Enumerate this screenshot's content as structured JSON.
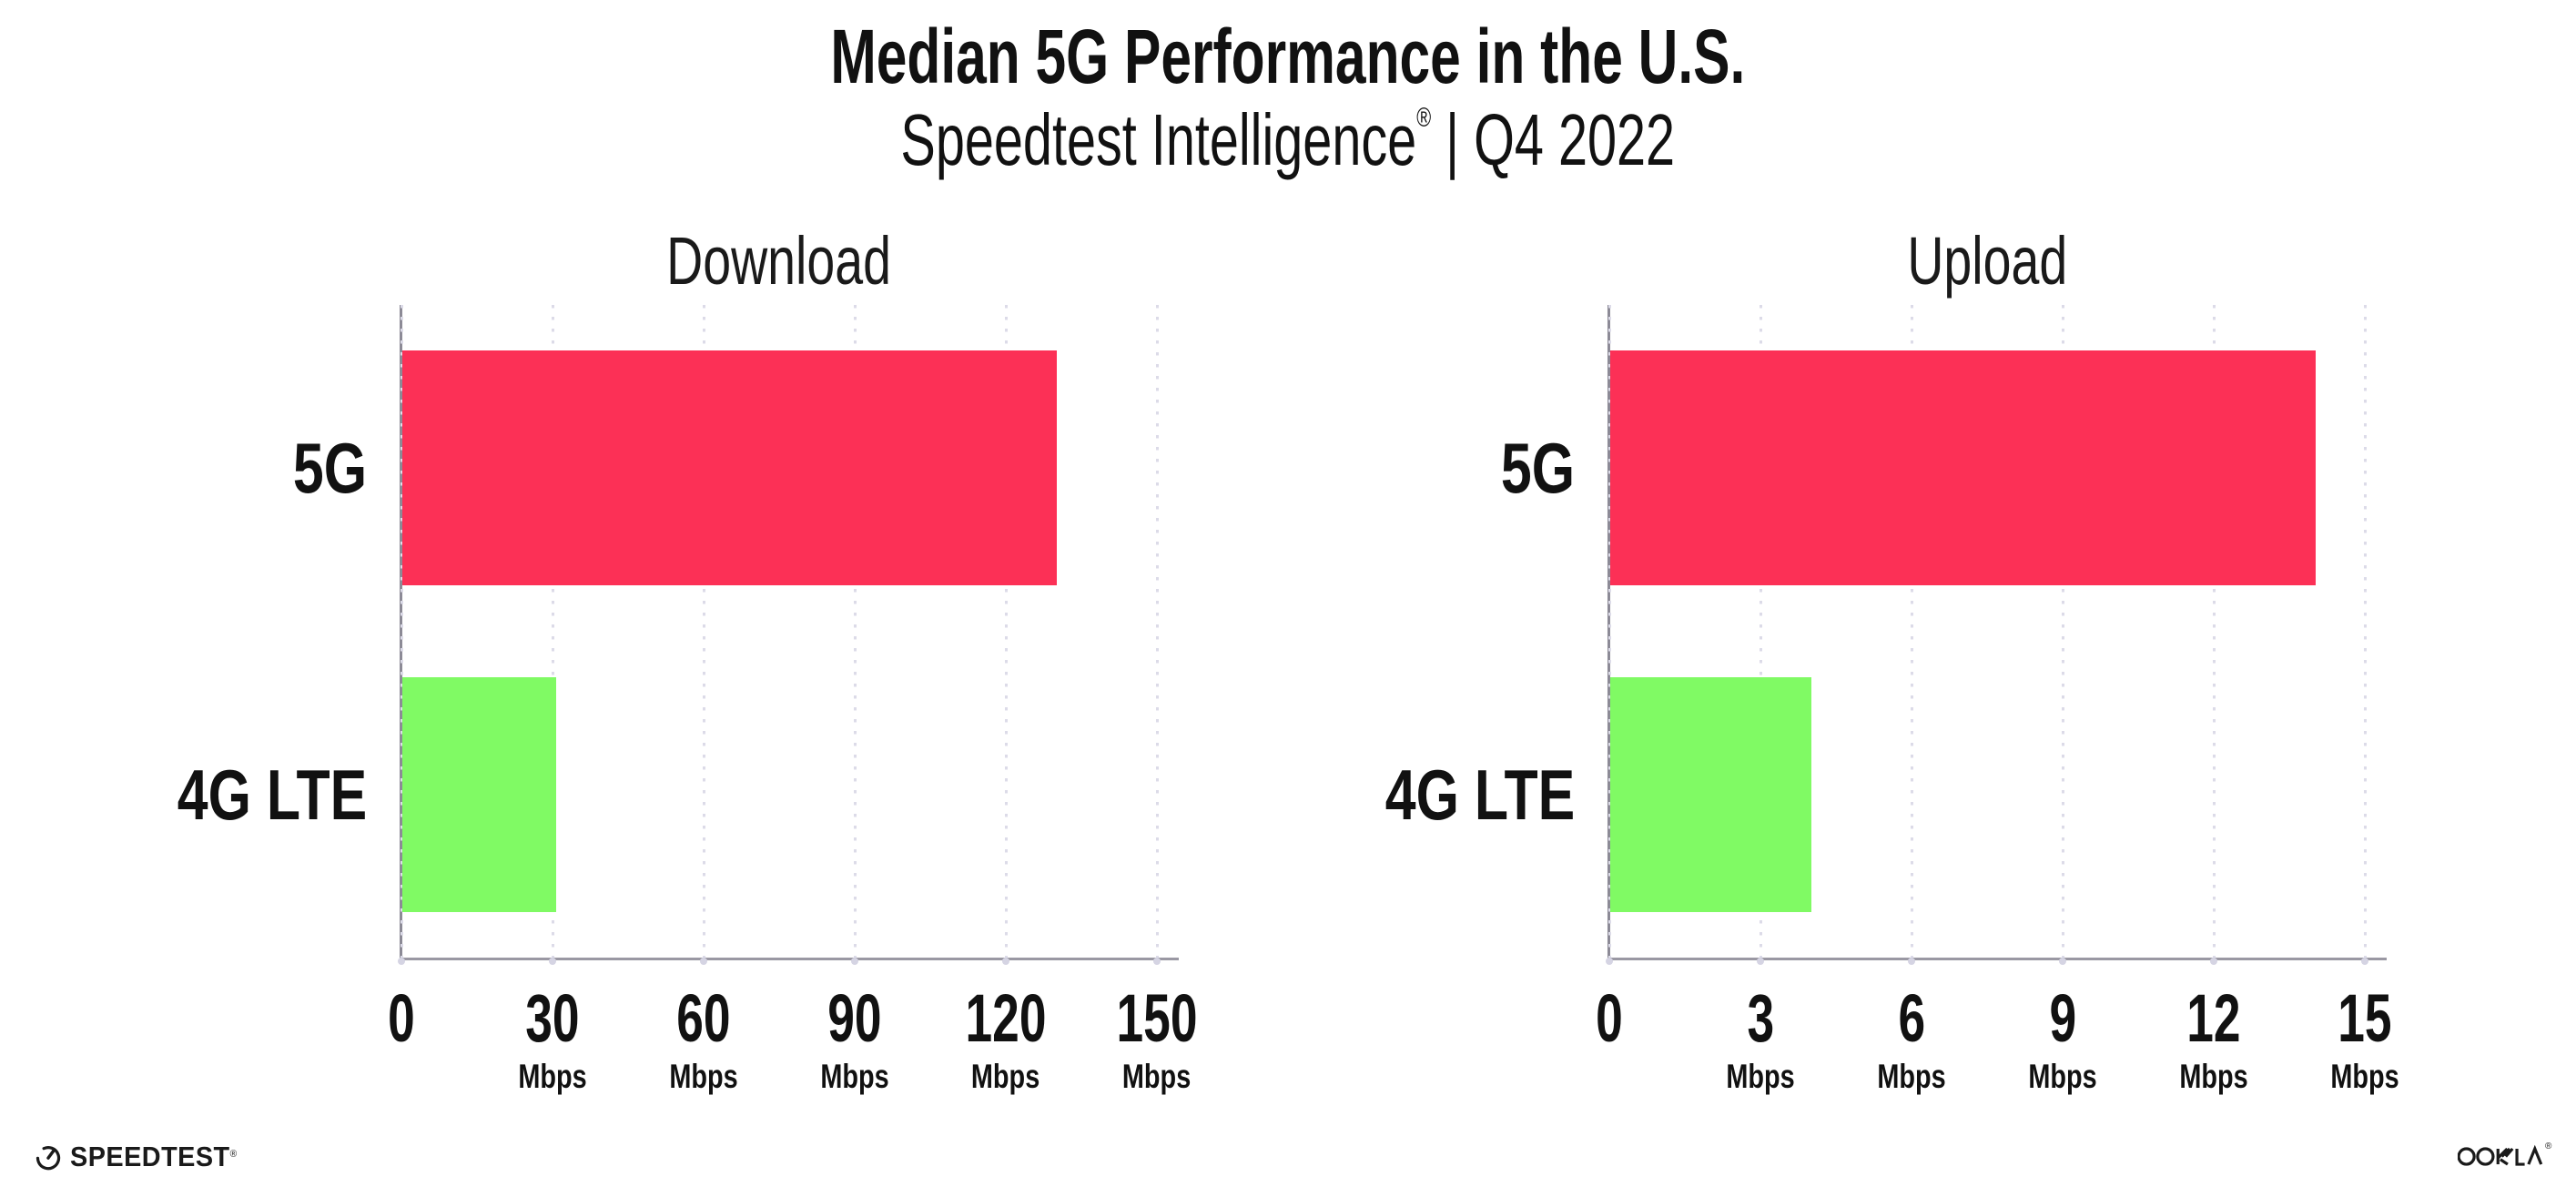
{
  "header": {
    "title": "Median 5G Performance in the U.S.",
    "subtitle_brand": "Speedtest Intelligence",
    "subtitle_reg": "®",
    "subtitle_period": " | Q4 2022"
  },
  "chart_data": [
    {
      "type": "bar",
      "orientation": "horizontal",
      "title": "Download",
      "categories": [
        "5G",
        "4G LTE"
      ],
      "values": [
        130,
        30.5
      ],
      "unit": "Mbps",
      "xlim": [
        0,
        150
      ],
      "ticks": [
        0,
        30,
        60,
        90,
        120,
        150
      ],
      "bar_colors": [
        "#fc3056",
        "#80fa64"
      ],
      "grid": "dotted-vertical",
      "legend": "none"
    },
    {
      "type": "bar",
      "orientation": "horizontal",
      "title": "Upload",
      "categories": [
        "5G",
        "4G LTE"
      ],
      "values": [
        14,
        4
      ],
      "unit": "Mbps",
      "xlim": [
        0,
        15
      ],
      "ticks": [
        0,
        3,
        6,
        9,
        12,
        15
      ],
      "bar_colors": [
        "#fc3056",
        "#80fa64"
      ],
      "grid": "dotted-vertical",
      "legend": "none"
    }
  ],
  "footer": {
    "speedtest_label": "SPEEDTEST",
    "speedtest_reg": "®",
    "ookla_label": "OOKLA",
    "ookla_reg": "®"
  },
  "colors": {
    "bar_5g": "#fc3056",
    "bar_4g_lte": "#80fa64"
  }
}
